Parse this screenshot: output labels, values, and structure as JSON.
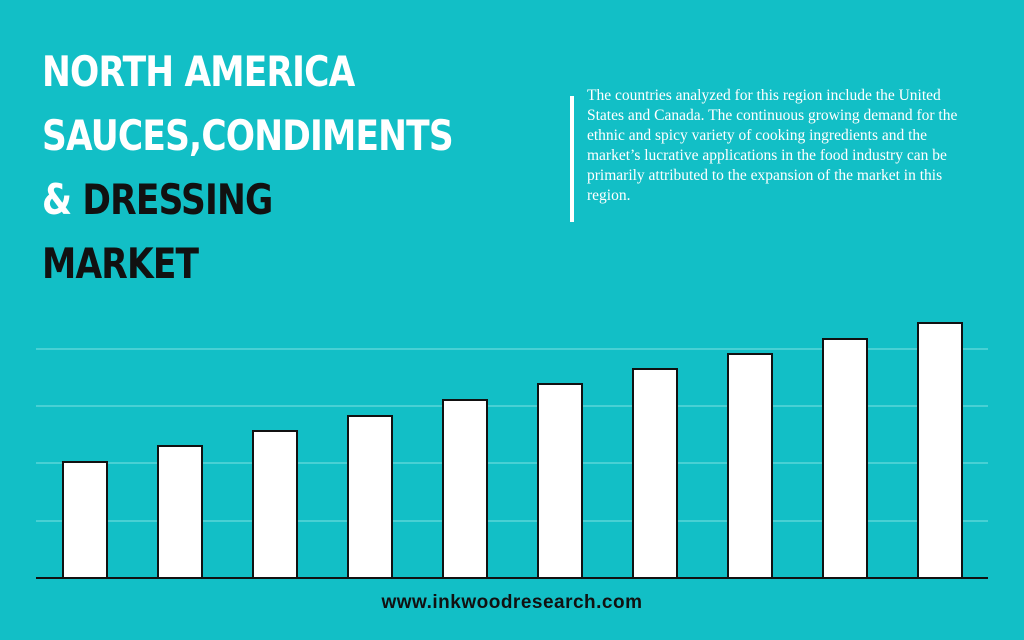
{
  "title": {
    "line1": "NORTH AMERICA",
    "line2": "SAUCES,CONDIMENTS",
    "line3_amp": "&",
    "line3_rest": "DRESSING",
    "line4": "MARKET"
  },
  "description": "The countries analyzed for this region include the United States and Canada.  The continuous growing demand for the ethnic and spicy variety of cooking ingredients and the market’s lucrative applications in the food industry can be primarily attributed to the expansion of the market in this region.",
  "footer": "www.inkwoodresearch.com",
  "colors": {
    "background": "#12bfc6",
    "bar_fill": "#ffffff",
    "bar_stroke": "#111111",
    "gridline": "#7fe0e3",
    "axis": "#111111"
  },
  "chart_data": {
    "type": "bar",
    "categories": [
      "",
      "",
      "",
      "",
      "",
      "",
      "",
      "",
      "",
      ""
    ],
    "values": [
      116,
      132,
      147,
      162,
      178,
      194,
      209,
      224,
      239,
      255
    ],
    "ylim": [
      0,
      260
    ],
    "grid": true,
    "gridlines": [
      57,
      115,
      172,
      229
    ],
    "legend": "none"
  }
}
